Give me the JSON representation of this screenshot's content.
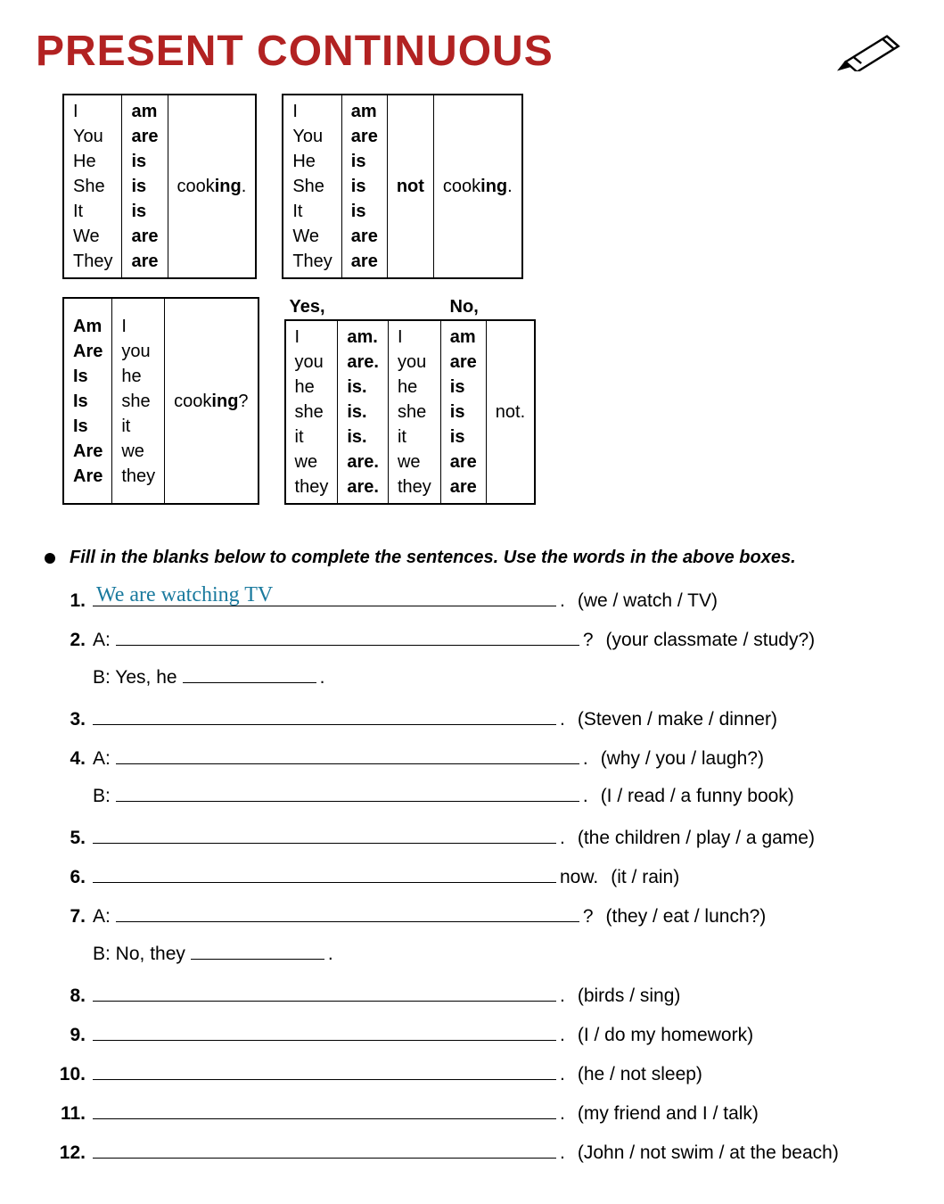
{
  "title": "PRESENT CONTINUOUS",
  "tables": {
    "affirmative": {
      "pronouns": "I\nYou\nHe\nShe\nIt\nWe\nThey",
      "verbs": "am\nare\nis\nis\nis\nare\nare",
      "verb_stem": "cook",
      "verb_suffix": "ing",
      "punct": "."
    },
    "negative": {
      "pronouns": "I\nYou\nHe\nShe\nIt\nWe\nThey",
      "verbs": "am\nare\nis\nis\nis\nare\nare",
      "not": "not",
      "verb_stem": "cook",
      "verb_suffix": "ing",
      "punct": "."
    },
    "question": {
      "verbs": "Am\nAre\nIs\nIs\nIs\nAre\nAre",
      "pronouns": "I\nyou\nhe\nshe\nit\nwe\nthey",
      "verb_stem": "cook",
      "verb_suffix": "ing",
      "punct": "?"
    },
    "short_answers": {
      "yes_label": "Yes,",
      "no_label": "No,",
      "yes_pronouns": "I\nyou\nhe\nshe\nit\nwe\nthey",
      "yes_verbs": "am.\nare.\nis.\nis.\nis.\nare.\nare.",
      "no_pronouns": "I\nyou\nhe\nshe\nit\nwe\nthey",
      "no_verbs": "am\nare\nis\nis\nis\nare\nare",
      "not": "not."
    }
  },
  "instruction": "Fill in the blanks below to complete the sentences.  Use the words in the above boxes.",
  "exercises": [
    {
      "num": "1.",
      "prefix": "",
      "answer": "We are watching TV",
      "after": ".",
      "hint": "(we / watch / TV)"
    },
    {
      "num": "2.",
      "prefix": "A:",
      "after": "?",
      "hint": "(your classmate / study?)",
      "sub": {
        "prefix": "B: Yes, he ",
        "short": true,
        "after": "."
      }
    },
    {
      "num": "3.",
      "prefix": "",
      "after": ".",
      "hint": "(Steven / make / dinner)"
    },
    {
      "num": "4.",
      "prefix": "A:",
      "after": ".",
      "hint": "(why / you / laugh?)",
      "sub": {
        "prefix": "B:",
        "long": true,
        "after": ".",
        "hint": "(I / read / a funny book)"
      }
    },
    {
      "num": "5.",
      "prefix": "",
      "after": ".",
      "hint": "(the children / play / a game)"
    },
    {
      "num": "6.",
      "prefix": "",
      "after": " now.",
      "hint": "(it / rain)"
    },
    {
      "num": "7.",
      "prefix": "A:",
      "after": "?",
      "hint": "(they / eat / lunch?)",
      "sub": {
        "prefix": "B: No, they ",
        "short": true,
        "after": "."
      }
    },
    {
      "num": "8.",
      "prefix": "",
      "after": ".",
      "hint": "(birds / sing)"
    },
    {
      "num": "9.",
      "prefix": "",
      "after": ".",
      "hint": "(I / do my homework)"
    },
    {
      "num": "10.",
      "prefix": "",
      "after": ".",
      "hint": "(he / not sleep)"
    },
    {
      "num": "11.",
      "prefix": "",
      "after": ".",
      "hint": "(my friend and I / talk)"
    },
    {
      "num": "12.",
      "prefix": "",
      "after": ".",
      "hint": "(John / not swim / at the beach)"
    }
  ],
  "colors": {
    "title": "#b22222",
    "answer": "#1a7a9e",
    "text": "#000000",
    "background": "#ffffff"
  }
}
